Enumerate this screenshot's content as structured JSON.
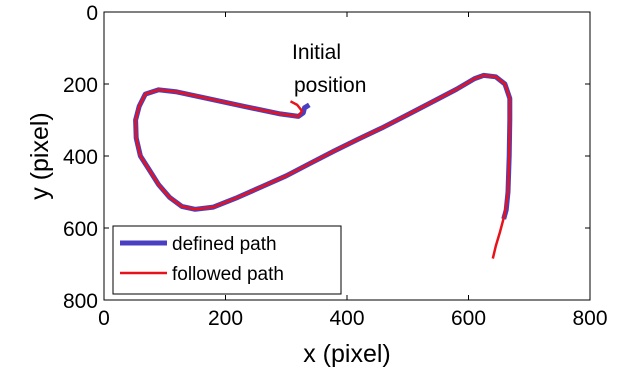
{
  "chart_data": {
    "type": "line",
    "xlabel": "x (pixel)",
    "ylabel": "y (pixel)",
    "xlim": [
      0,
      800
    ],
    "ylim": [
      800,
      0
    ],
    "y_axis_inverted": true,
    "xticks": [
      "0",
      "200",
      "400",
      "600",
      "800"
    ],
    "yticks": [
      "0",
      "200",
      "400",
      "600",
      "800"
    ],
    "grid": false,
    "legend": "bottom-left",
    "annotation": {
      "lines": [
        "Initial",
        "position"
      ],
      "x": 335,
      "y": 220
    },
    "series": [
      {
        "name": "defined path",
        "color": "#4a3fc0",
        "points": [
          [
            338,
            258
          ],
          [
            330,
            266
          ],
          [
            328,
            280
          ],
          [
            320,
            290
          ],
          [
            290,
            283
          ],
          [
            230,
            262
          ],
          [
            170,
            240
          ],
          [
            120,
            222
          ],
          [
            90,
            216
          ],
          [
            68,
            228
          ],
          [
            58,
            262
          ],
          [
            52,
            300
          ],
          [
            53,
            350
          ],
          [
            60,
            400
          ],
          [
            75,
            440
          ],
          [
            90,
            480
          ],
          [
            108,
            515
          ],
          [
            128,
            540
          ],
          [
            150,
            548
          ],
          [
            180,
            542
          ],
          [
            220,
            515
          ],
          [
            260,
            485
          ],
          [
            300,
            455
          ],
          [
            340,
            420
          ],
          [
            380,
            385
          ],
          [
            420,
            352
          ],
          [
            460,
            320
          ],
          [
            500,
            285
          ],
          [
            540,
            250
          ],
          [
            580,
            215
          ],
          [
            610,
            185
          ],
          [
            625,
            176
          ],
          [
            645,
            180
          ],
          [
            660,
            200
          ],
          [
            668,
            240
          ],
          [
            668,
            300
          ],
          [
            667,
            400
          ],
          [
            665,
            500
          ],
          [
            662,
            550
          ],
          [
            658,
            575
          ]
        ]
      },
      {
        "name": "followed path",
        "color": "#e8121b",
        "points": [
          [
            307,
            248
          ],
          [
            318,
            258
          ],
          [
            326,
            275
          ],
          [
            320,
            290
          ],
          [
            290,
            283
          ],
          [
            230,
            262
          ],
          [
            170,
            240
          ],
          [
            120,
            222
          ],
          [
            90,
            216
          ],
          [
            68,
            228
          ],
          [
            58,
            262
          ],
          [
            52,
            300
          ],
          [
            53,
            350
          ],
          [
            60,
            400
          ],
          [
            75,
            440
          ],
          [
            90,
            480
          ],
          [
            108,
            515
          ],
          [
            128,
            540
          ],
          [
            150,
            548
          ],
          [
            180,
            542
          ],
          [
            220,
            515
          ],
          [
            260,
            485
          ],
          [
            300,
            455
          ],
          [
            340,
            420
          ],
          [
            380,
            385
          ],
          [
            420,
            352
          ],
          [
            460,
            320
          ],
          [
            500,
            285
          ],
          [
            540,
            250
          ],
          [
            580,
            215
          ],
          [
            610,
            185
          ],
          [
            625,
            176
          ],
          [
            645,
            180
          ],
          [
            660,
            200
          ],
          [
            668,
            240
          ],
          [
            668,
            300
          ],
          [
            667,
            400
          ],
          [
            665,
            500
          ],
          [
            660,
            560
          ],
          [
            652,
            610
          ],
          [
            645,
            650
          ],
          [
            640,
            685
          ]
        ]
      }
    ]
  }
}
